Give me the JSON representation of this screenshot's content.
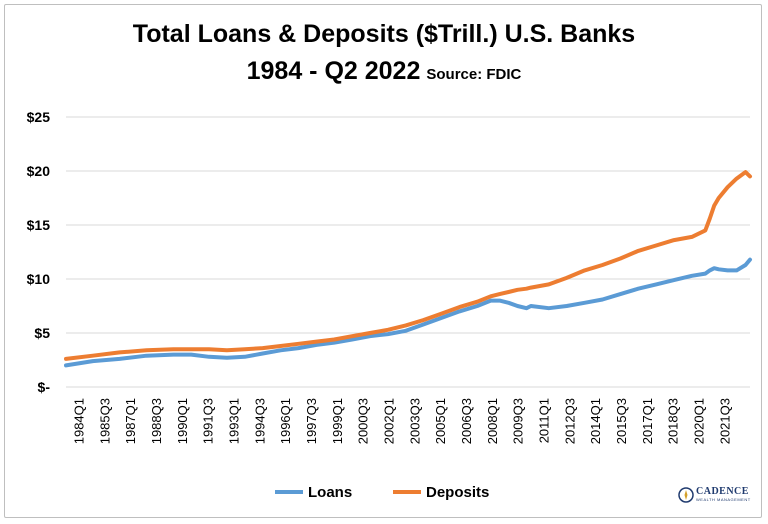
{
  "title": {
    "line1": "Total Loans & Deposits ($Trill.) U.S. Banks",
    "line2_main": "1984 - Q2 2022",
    "line2_source": "Source: FDIC"
  },
  "logo": {
    "name": "CADENCE",
    "tagline": "WEALTH MANAGEMENT"
  },
  "chart_data": {
    "type": "line",
    "title": "Total Loans & Deposits ($Trill.) U.S. Banks 1984 - Q2 2022",
    "xlabel": "",
    "ylabel": "",
    "ylim": [
      0,
      25
    ],
    "yticks": [
      0,
      5,
      10,
      15,
      20,
      25
    ],
    "ytick_labels": [
      "$-",
      "$5",
      "$10",
      "$15",
      "$20",
      "$25"
    ],
    "xtick_labels": [
      "1984Q1",
      "1985Q3",
      "1987Q1",
      "1988Q3",
      "1990Q1",
      "1991Q3",
      "1993Q1",
      "1994Q3",
      "1996Q1",
      "1997Q3",
      "1999Q1",
      "2000Q3",
      "2002Q1",
      "2003Q3",
      "2005Q1",
      "2006Q3",
      "2008Q1",
      "2009Q3",
      "2011Q1",
      "2012Q3",
      "2014Q1",
      "2015Q3",
      "2017Q1",
      "2018Q3",
      "2020Q1",
      "2021Q3"
    ],
    "x": [
      1984.0,
      1985.5,
      1987.0,
      1988.5,
      1990.0,
      1991.0,
      1992.0,
      1993.0,
      1994.0,
      1995.0,
      1996.0,
      1997.0,
      1998.0,
      1999.0,
      2000.0,
      2001.0,
      2002.0,
      2003.0,
      2004.0,
      2005.0,
      2006.0,
      2007.0,
      2007.75,
      2008.25,
      2008.75,
      2009.25,
      2009.75,
      2010.0,
      2011.0,
      2012.0,
      2013.0,
      2014.0,
      2015.0,
      2016.0,
      2017.0,
      2018.0,
      2019.0,
      2019.75,
      2020.0,
      2020.25,
      2020.5,
      2021.0,
      2021.5,
      2022.0,
      2022.25
    ],
    "series": [
      {
        "name": "Loans",
        "color": "#5b9bd5",
        "values": [
          2.0,
          2.4,
          2.6,
          2.9,
          3.0,
          3.0,
          2.8,
          2.7,
          2.8,
          3.1,
          3.4,
          3.6,
          3.9,
          4.1,
          4.4,
          4.7,
          4.9,
          5.2,
          5.8,
          6.4,
          7.0,
          7.5,
          8.0,
          8.0,
          7.8,
          7.5,
          7.3,
          7.5,
          7.3,
          7.5,
          7.8,
          8.1,
          8.6,
          9.1,
          9.5,
          9.9,
          10.3,
          10.5,
          10.8,
          11.0,
          10.9,
          10.8,
          10.8,
          11.3,
          11.8
        ]
      },
      {
        "name": "Deposits",
        "color": "#ed7d31",
        "values": [
          2.6,
          2.9,
          3.2,
          3.4,
          3.5,
          3.5,
          3.5,
          3.4,
          3.5,
          3.6,
          3.8,
          4.0,
          4.2,
          4.4,
          4.7,
          5.0,
          5.3,
          5.7,
          6.2,
          6.8,
          7.4,
          7.9,
          8.4,
          8.6,
          8.8,
          9.0,
          9.1,
          9.2,
          9.5,
          10.1,
          10.8,
          11.3,
          11.9,
          12.6,
          13.1,
          13.6,
          13.9,
          14.5,
          15.6,
          16.8,
          17.5,
          18.5,
          19.3,
          19.9,
          19.5
        ]
      }
    ],
    "legend": {
      "placement": "bottom",
      "entries": [
        "Loans",
        "Deposits"
      ]
    },
    "grid": "horizontal"
  }
}
